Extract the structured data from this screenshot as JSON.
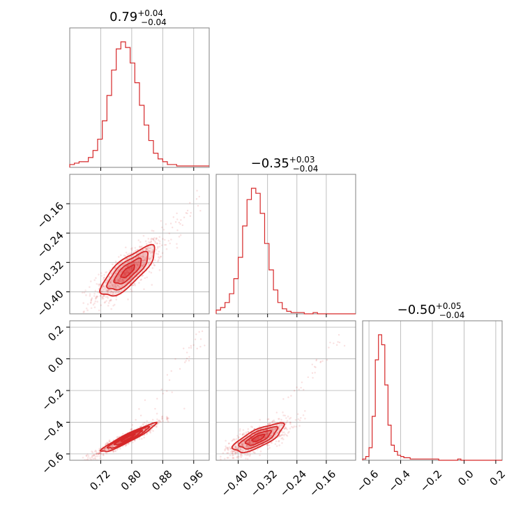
{
  "chart_data": {
    "type": "corner",
    "color": "#d62728",
    "parameters": [
      {
        "title_value": "0.79",
        "err_plus": "+0.04",
        "err_minus": "−0.04",
        "range": [
          0.64,
          1.0
        ],
        "ticks": [
          0.72,
          0.8,
          0.88,
          0.96
        ],
        "tick_labels": [
          "0.72",
          "0.80",
          "0.88",
          "0.96"
        ]
      },
      {
        "title_value": "−0.35",
        "err_plus": "+0.03",
        "err_minus": "−0.04",
        "range": [
          -0.46,
          -0.08
        ],
        "ticks": [
          -0.4,
          -0.32,
          -0.24,
          -0.16
        ],
        "tick_labels": [
          "−0.40",
          "−0.32",
          "−0.24",
          "−0.16"
        ]
      },
      {
        "title_value": "−0.50",
        "err_plus": "+0.05",
        "err_minus": "−0.04",
        "range": [
          -0.64,
          0.24
        ],
        "ticks": [
          -0.6,
          -0.4,
          -0.2,
          0.0,
          0.2
        ],
        "tick_labels": [
          "−0.6",
          "−0.4",
          "−0.2",
          "0.0",
          "0.2"
        ]
      }
    ],
    "histograms": [
      {
        "param": 0,
        "bins": [
          0.64,
          0.652,
          0.664,
          0.676,
          0.688,
          0.7,
          0.712,
          0.724,
          0.736,
          0.748,
          0.76,
          0.772,
          0.784,
          0.796,
          0.808,
          0.82,
          0.832,
          0.844,
          0.856,
          0.868,
          0.88,
          0.892,
          0.904,
          0.916,
          0.928,
          0.94,
          0.952,
          0.964,
          0.976,
          0.988,
          1.0
        ],
        "counts": [
          2,
          3,
          4,
          4,
          7,
          12,
          20,
          33,
          51,
          69,
          84,
          89,
          85,
          74,
          60,
          44,
          30,
          19,
          10,
          6,
          4,
          2,
          2,
          1,
          1,
          1,
          1,
          1,
          1,
          1
        ]
      },
      {
        "param": 1,
        "bins": [
          -0.46,
          -0.448,
          -0.436,
          -0.424,
          -0.412,
          -0.4,
          -0.388,
          -0.376,
          -0.364,
          -0.352,
          -0.34,
          -0.328,
          -0.316,
          -0.304,
          -0.292,
          -0.28,
          -0.268,
          -0.256,
          -0.244,
          -0.232,
          -0.22,
          -0.208,
          -0.196,
          -0.184,
          -0.172,
          -0.16,
          -0.148,
          -0.136,
          -0.124,
          -0.112,
          -0.1,
          -0.088,
          -0.08
        ],
        "counts": [
          3,
          5,
          9,
          16,
          28,
          45,
          70,
          91,
          100,
          96,
          80,
          56,
          35,
          19,
          9,
          4,
          2,
          1,
          1,
          1,
          0,
          0,
          1,
          0,
          0,
          0,
          0,
          0,
          0,
          0,
          0,
          0
        ]
      },
      {
        "param": 2,
        "bins": [
          -0.64,
          -0.62,
          -0.6,
          -0.58,
          -0.56,
          -0.54,
          -0.52,
          -0.5,
          -0.48,
          -0.46,
          -0.44,
          -0.42,
          -0.4,
          -0.38,
          -0.36,
          -0.34,
          -0.32,
          -0.3,
          -0.28,
          -0.26,
          -0.24,
          -0.22,
          -0.2,
          -0.18,
          -0.16,
          -0.14,
          -0.12,
          -0.1,
          -0.08,
          -0.06,
          -0.04,
          -0.02,
          0.0,
          0.02,
          0.04,
          0.06,
          0.08,
          0.1,
          0.12,
          0.14,
          0.16,
          0.18,
          0.2,
          0.22,
          0.24
        ],
        "counts": [
          1,
          3,
          10,
          35,
          80,
          100,
          92,
          60,
          28,
          12,
          7,
          4,
          3,
          2,
          2,
          1,
          1,
          1,
          1,
          1,
          1,
          1,
          1,
          1,
          0,
          0,
          0,
          0,
          0,
          0,
          1,
          0,
          0,
          0,
          0,
          0,
          0,
          0,
          0,
          0,
          0,
          0,
          0,
          0
        ]
      }
    ],
    "pairs": [
      {
        "x_param": 0,
        "y_param": 1,
        "mean": [
          0.79,
          -0.345
        ],
        "sd": [
          0.035,
          0.034
        ],
        "corr": 0.78,
        "tail_to": [
          0.99,
          -0.14
        ]
      },
      {
        "x_param": 0,
        "y_param": 2,
        "mean": [
          0.79,
          -0.5
        ],
        "sd": [
          0.035,
          0.045
        ],
        "corr": 0.95,
        "tail_to": [
          0.99,
          0.18
        ]
      },
      {
        "x_param": 1,
        "y_param": 2,
        "mean": [
          -0.345,
          -0.5
        ],
        "sd": [
          0.034,
          0.045
        ],
        "corr": 0.75,
        "tail_to": [
          -0.12,
          0.15
        ]
      }
    ],
    "contour_levels_sigma": [
      0.5,
      1.0,
      1.5,
      2.0
    ],
    "grid": true
  }
}
